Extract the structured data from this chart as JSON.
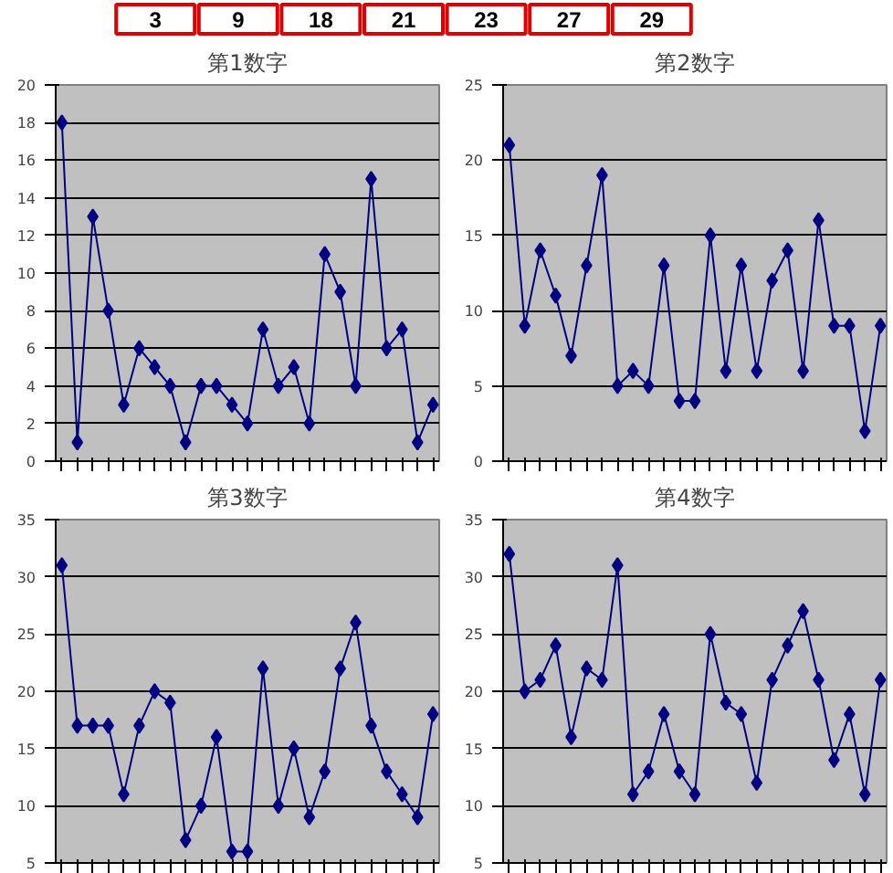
{
  "chart_data": [
    {
      "type": "other",
      "annotations": [
        "3",
        "9",
        "18",
        "21",
        "23",
        "27",
        "29"
      ],
      "color": "#e00000"
    },
    {
      "type": "line",
      "title": "第1数字",
      "categories": [
        null,
        null,
        null,
        null,
        null,
        null,
        null,
        null,
        null,
        null,
        null,
        null,
        null,
        null,
        null,
        null,
        null,
        null,
        null,
        null,
        null,
        null,
        null,
        null,
        null
      ],
      "values": [
        18,
        1,
        13,
        8,
        3,
        6,
        5,
        4,
        1,
        4,
        4,
        3,
        2,
        7,
        4,
        5,
        2,
        11,
        9,
        4,
        15,
        6,
        7,
        1,
        3
      ],
      "color": "#000080",
      "ylim": [
        0,
        20
      ],
      "yticks": [
        0,
        2,
        4,
        6,
        8,
        10,
        12,
        14,
        16,
        18,
        20
      ],
      "grid": "y",
      "marker": "diamond",
      "tick_labels": "y"
    },
    {
      "type": "line",
      "title": "第2数字",
      "categories": [
        null,
        null,
        null,
        null,
        null,
        null,
        null,
        null,
        null,
        null,
        null,
        null,
        null,
        null,
        null,
        null,
        null,
        null,
        null,
        null,
        null,
        null,
        null,
        null,
        null
      ],
      "values": [
        21,
        9,
        14,
        11,
        7,
        13,
        19,
        5,
        6,
        5,
        13,
        4,
        4,
        15,
        6,
        13,
        6,
        12,
        14,
        6,
        16,
        9,
        9,
        2,
        9
      ],
      "color": "#000080",
      "ylim": [
        0,
        25
      ],
      "yticks": [
        0,
        5,
        10,
        15,
        20,
        25
      ],
      "grid": "y",
      "marker": "diamond",
      "tick_labels": "y"
    },
    {
      "type": "line",
      "title": "第3数字",
      "categories": [
        null,
        null,
        null,
        null,
        null,
        null,
        null,
        null,
        null,
        null,
        null,
        null,
        null,
        null,
        null,
        null,
        null,
        null,
        null,
        null,
        null,
        null,
        null,
        null,
        null
      ],
      "values": [
        31,
        17,
        17,
        17,
        11,
        17,
        20,
        19,
        7,
        10,
        16,
        6,
        6,
        22,
        10,
        15,
        9,
        13,
        22,
        26,
        17,
        13,
        11,
        9,
        18
      ],
      "color": "#000080",
      "ylim": [
        5,
        35
      ],
      "yticks": [
        5,
        10,
        15,
        20,
        25,
        30,
        35
      ],
      "grid": "y",
      "marker": "diamond",
      "tick_labels": "y"
    },
    {
      "type": "line",
      "title": "第4数字",
      "categories": [
        null,
        null,
        null,
        null,
        null,
        null,
        null,
        null,
        null,
        null,
        null,
        null,
        null,
        null,
        null,
        null,
        null,
        null,
        null,
        null,
        null,
        null,
        null,
        null,
        null
      ],
      "values": [
        32,
        20,
        21,
        24,
        16,
        22,
        21,
        31,
        11,
        13,
        18,
        13,
        11,
        25,
        19,
        18,
        12,
        21,
        24,
        27,
        21,
        14,
        18,
        11,
        21
      ],
      "color": "#000080",
      "ylim": [
        5,
        35
      ],
      "yticks": [
        5,
        10,
        15,
        20,
        25,
        30,
        35
      ],
      "grid": "y",
      "marker": "diamond",
      "tick_labels": "y"
    }
  ]
}
